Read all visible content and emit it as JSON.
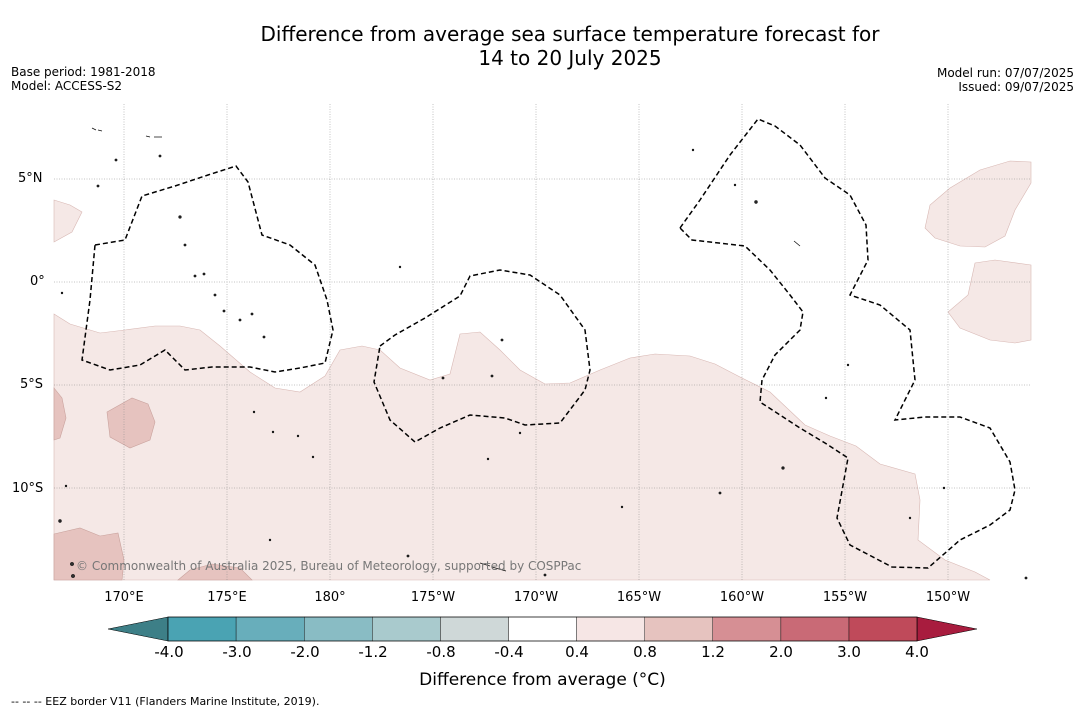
{
  "title_line1": "Difference from average sea surface temperature forecast for",
  "title_line2": "14 to 20 July 2025",
  "base_period": "Base period: 1981-2018",
  "model": "Model: ACCESS-S2",
  "model_run": "Model run: 07/07/2025",
  "issued": "Issued: 09/07/2025",
  "credit": "© Commonwealth of Australia 2025, Bureau of Meteorology, supported by COSPPac",
  "lat_labels": [
    "5°N",
    "0°",
    "5°S",
    "10°S"
  ],
  "lon_labels": [
    "170°E",
    "175°E",
    "180°",
    "175°W",
    "170°W",
    "165°W",
    "160°W",
    "155°W",
    "150°W"
  ],
  "colorbar": {
    "label": "Difference from average (°C)",
    "ticks": [
      "-4.0",
      "-3.0",
      "-2.0",
      "-1.2",
      "-0.8",
      "-0.4",
      "0.4",
      "0.8",
      "1.2",
      "2.0",
      "3.0",
      "4.0"
    ],
    "colors": [
      "#4aa3b3",
      "#68aebb",
      "#89bcc4",
      "#a9cacd",
      "#cfd8d8",
      "#ffffff",
      "#f6e6e5",
      "#e6c3bf",
      "#d68f94",
      "#c96a76",
      "#bf4a5a"
    ],
    "under_color": "#3d7f87",
    "over_color": "#a81c3e"
  },
  "eez_note": "--  --  -- EEZ border V11 (Flanders Marine Institute, 2019)."
}
